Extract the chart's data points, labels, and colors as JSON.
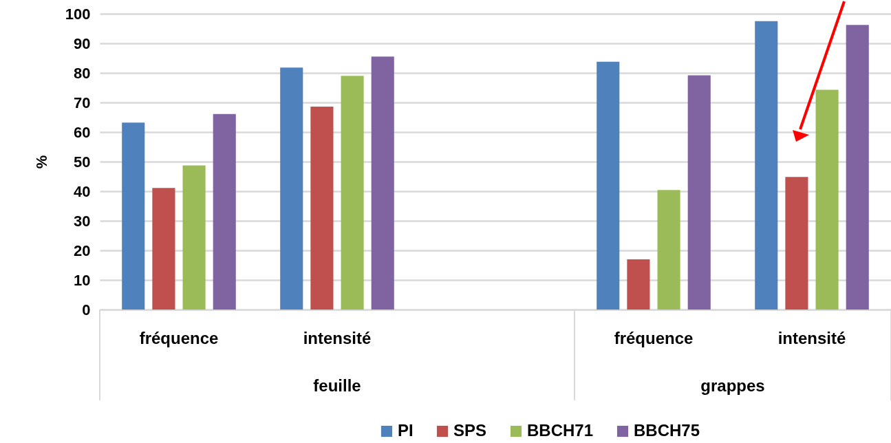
{
  "chart_data": {
    "type": "bar",
    "ylabel": "%",
    "categories": [
      "fréquence",
      "intensité",
      null,
      "fréquence",
      "intensité"
    ],
    "series": [
      {
        "name": "PI",
        "color": "#4f81bd",
        "values": [
          63.2,
          81.8,
          null,
          83.8,
          97.5
        ]
      },
      {
        "name": "SPS",
        "color": "#c0504d",
        "values": [
          41.1,
          68.6,
          null,
          17.0,
          44.8
        ]
      },
      {
        "name": "BBCH71",
        "color": "#9bbb59",
        "values": [
          48.7,
          79.0,
          null,
          40.4,
          74.3
        ]
      },
      {
        "name": "BBCH75",
        "color": "#8064a2",
        "values": [
          66.1,
          85.5,
          null,
          79.2,
          96.2
        ]
      }
    ],
    "ylim": [
      0,
      100
    ],
    "yticks": [
      0,
      10,
      20,
      30,
      40,
      50,
      60,
      70,
      80,
      90,
      100
    ],
    "grid": "y",
    "legend": "bottom",
    "annotations": [
      "feuille",
      "grappes"
    ]
  }
}
